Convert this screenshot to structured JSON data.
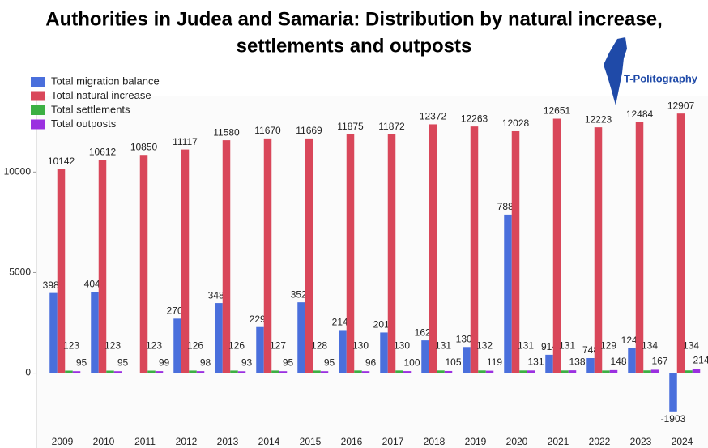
{
  "chart_data": {
    "type": "bar",
    "title": [
      "Authorities in Judea and Samaria: Distribution by natural increase,",
      "settlements and outposts"
    ],
    "categories": [
      "2009",
      "2010",
      "2011",
      "2012",
      "2013",
      "2014",
      "2015",
      "2016",
      "2017",
      "2018",
      "2019",
      "2020",
      "2021",
      "2022",
      "2023",
      "2024"
    ],
    "series": [
      {
        "name": "Total migration balance",
        "color": "#4a6fdc",
        "values": [
          3986,
          4043,
          null,
          2708,
          3484,
          2290,
          3521,
          2140,
          2019,
          1629,
          1300,
          7882,
          914,
          748,
          1243,
          -1903
        ]
      },
      {
        "name": "Total natural increase",
        "color": "#d9475a",
        "values": [
          10142,
          10612,
          10850,
          11117,
          11580,
          11670,
          11669,
          11875,
          11872,
          12372,
          12263,
          12028,
          12651,
          12223,
          12484,
          12907
        ]
      },
      {
        "name": "Total settlements",
        "color": "#3cb043",
        "values": [
          123,
          123,
          123,
          126,
          126,
          127,
          128,
          130,
          130,
          131,
          132,
          131,
          131,
          129,
          134,
          134
        ]
      },
      {
        "name": "Total outposts",
        "color": "#9b30e0",
        "values": [
          95,
          95,
          99,
          98,
          93,
          95,
          95,
          96,
          100,
          105,
          119,
          131,
          138,
          148,
          167,
          214
        ]
      }
    ],
    "ylim": [
      -3200,
      13800
    ],
    "yticks": [
      0,
      5000,
      10000
    ],
    "grid": false,
    "legend": "top-left"
  },
  "watermark": "T-Politography"
}
